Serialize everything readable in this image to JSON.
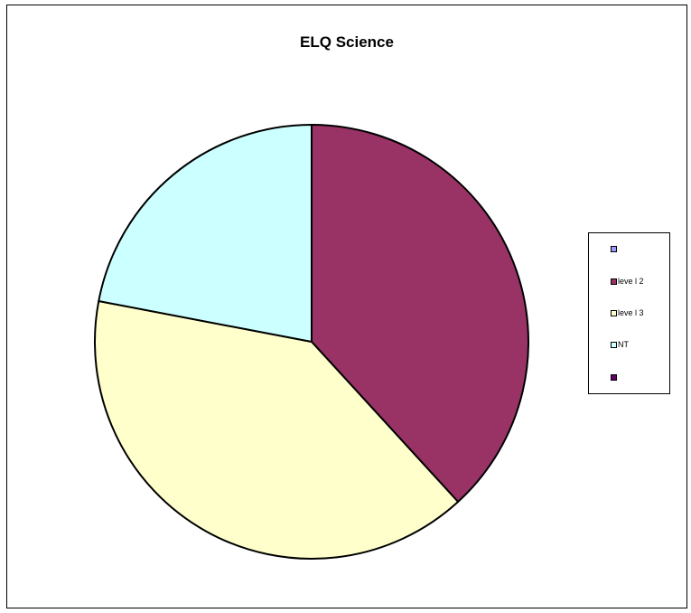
{
  "chart_data": {
    "type": "pie",
    "title": "ELQ Science",
    "slices": [
      {
        "label": "",
        "value": 0,
        "color": "#9999FF"
      },
      {
        "label": "leve l 2",
        "value": 38.2,
        "color": "#993366"
      },
      {
        "label": "leve l 3",
        "value": 39.8,
        "color": "#FFFFCC"
      },
      {
        "label": "NT",
        "value": 22.0,
        "color": "#CCFFFF"
      },
      {
        "label": "",
        "value": 0,
        "color": "#660066"
      }
    ],
    "legend_position": "right",
    "start_angle": "top",
    "direction": "clockwise"
  }
}
